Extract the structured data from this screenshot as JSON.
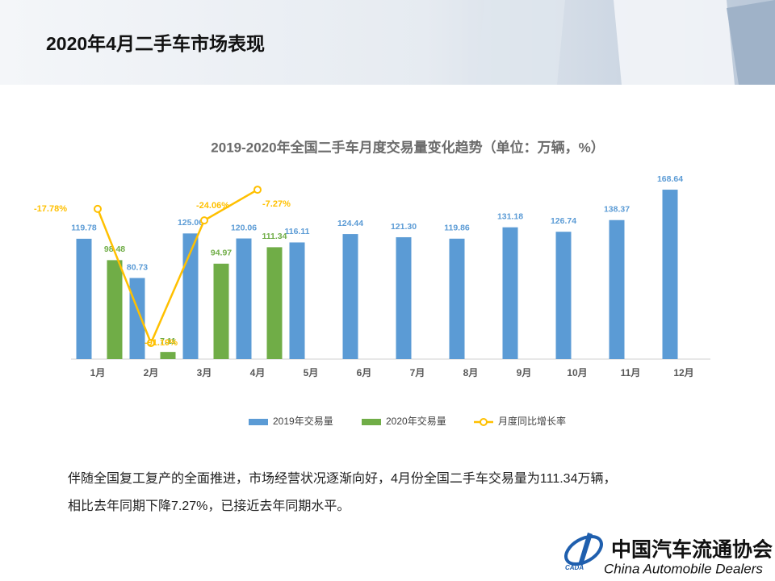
{
  "header": {
    "title": "2020年4月二手车市场表现"
  },
  "chart_data": {
    "type": "bar",
    "title": "2019-2020年全国二手车月度交易量变化趋势（单位：万辆，%）",
    "categories": [
      "1月",
      "2月",
      "3月",
      "4月",
      "5月",
      "6月",
      "7月",
      "8月",
      "9月",
      "10月",
      "11月",
      "12月"
    ],
    "series": [
      {
        "name": "2019年交易量",
        "color": "#5b9bd5",
        "values": [
          119.78,
          80.73,
          125.06,
          120.06,
          116.11,
          124.44,
          121.3,
          119.86,
          131.18,
          126.74,
          138.37,
          168.64
        ],
        "value_labels": [
          "119.78",
          "80.73",
          "125.06",
          "120.06",
          "116.11",
          "124.44",
          "121.30",
          "119.86",
          "131.18",
          "126.74",
          "138.37",
          "168.64"
        ]
      },
      {
        "name": "2020年交易量",
        "color": "#70ad47",
        "values": [
          98.48,
          7.11,
          94.97,
          111.34,
          null,
          null,
          null,
          null,
          null,
          null,
          null,
          null
        ]
      },
      {
        "name": "月度同比增长率",
        "color": "#ffc000",
        "type": "line",
        "axis": "y2",
        "values": [
          -17.78,
          -91.19,
          -24.06,
          -7.27,
          null,
          null,
          null,
          null,
          null,
          null,
          null,
          null
        ],
        "value_labels": [
          "-17.78%",
          "-91.19%",
          "-24.06%",
          "-7.27%",
          null,
          null,
          null,
          null,
          null,
          null,
          null,
          null
        ]
      }
    ],
    "ylim": [
      0,
      200
    ],
    "y2lim": [
      -100,
      10
    ],
    "legend": "bottom"
  },
  "body": {
    "lines": [
      "伴随全国复工复产的全面推进，市场经营状况逐渐向好，4月份全国二手车交易量为111.34万辆，",
      "相比去年同期下降7.27%，已接近去年同期水平。"
    ]
  },
  "footer": {
    "org": "中国汽车流通协会",
    "org_en": "China  Automobile Dealers",
    "logo": "CADA"
  }
}
